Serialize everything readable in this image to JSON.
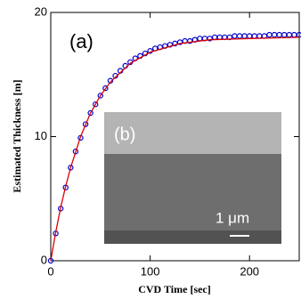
{
  "chart_data": {
    "type": "scatter",
    "xlabel": "CVD Time [sec]",
    "ylabel": "Estimated Thickness [m]",
    "annotation": "(a)",
    "inset_label": "(b)",
    "inset_scale_label": "1 μm",
    "xlim": [
      0,
      250
    ],
    "ylim": [
      0,
      20
    ],
    "xticks": [
      0,
      100,
      200
    ],
    "yticks": [
      0,
      10,
      20
    ],
    "series": [
      {
        "color": "#0000cc",
        "marker": "circle",
        "x": [
          0,
          5,
          10,
          15,
          20,
          25,
          30,
          35,
          40,
          45,
          50,
          55,
          60,
          65,
          70,
          75,
          80,
          85,
          90,
          95,
          100,
          105,
          110,
          115,
          120,
          125,
          130,
          135,
          140,
          145,
          150,
          155,
          160,
          165,
          170,
          175,
          180,
          185,
          190,
          195,
          200,
          205,
          210,
          215,
          220,
          225,
          230,
          235,
          240,
          245,
          250
        ],
        "values": [
          0,
          2.2,
          4.2,
          5.9,
          7.5,
          8.8,
          9.9,
          11.0,
          11.9,
          12.6,
          13.3,
          13.9,
          14.5,
          14.9,
          15.3,
          15.7,
          16.0,
          16.3,
          16.5,
          16.7,
          16.9,
          17.1,
          17.2,
          17.3,
          17.4,
          17.5,
          17.6,
          17.7,
          17.7,
          17.8,
          17.9,
          17.9,
          17.9,
          18.0,
          18.0,
          18.0,
          18.0,
          18.1,
          18.1,
          18.1,
          18.1,
          18.1,
          18.1,
          18.1,
          18.2,
          18.2,
          18.2,
          18.2,
          18.2,
          18.2,
          18.2
        ]
      },
      {
        "color": "#dd0000",
        "marker": "line",
        "x": [
          0,
          5,
          10,
          15,
          20,
          30,
          40,
          50,
          60,
          80,
          100,
          130,
          160,
          200,
          250
        ],
        "values": [
          0,
          2.3,
          4.3,
          6.0,
          7.5,
          10.0,
          11.9,
          13.3,
          14.4,
          15.9,
          16.8,
          17.5,
          17.8,
          17.9,
          18.0
        ]
      }
    ]
  }
}
